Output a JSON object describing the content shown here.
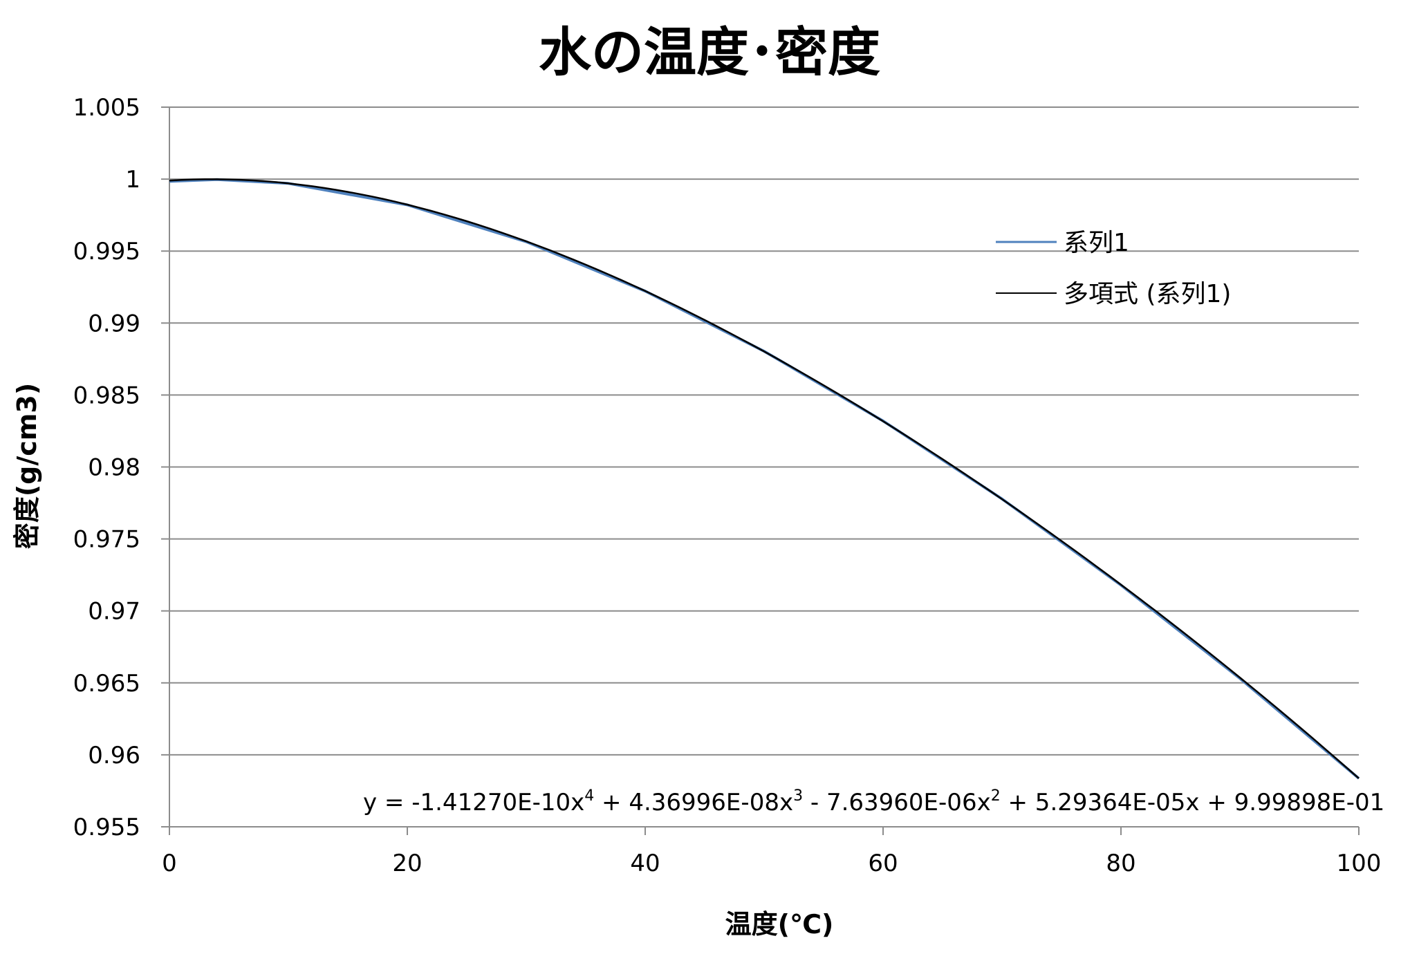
{
  "chart_data": {
    "type": "line",
    "title": "水の温度･密度",
    "xlabel": "温度(℃)",
    "ylabel": "密度(g/cm3)",
    "xlim": [
      0,
      100
    ],
    "ylim": [
      0.955,
      1.005
    ],
    "xticks": [
      "0",
      "20",
      "40",
      "60",
      "80",
      "100"
    ],
    "yticks": [
      "1.005",
      "1",
      "0.995",
      "0.99",
      "0.985",
      "0.98",
      "0.975",
      "0.97",
      "0.965",
      "0.96",
      "0.955"
    ],
    "grid": true,
    "legend_position": "right",
    "series": [
      {
        "name": "系列1",
        "color": "#4f81bd",
        "x": [
          0,
          4,
          10,
          20,
          30,
          40,
          50,
          60,
          70,
          80,
          90,
          100
        ],
        "y": [
          0.99984,
          0.99997,
          0.9997,
          0.99821,
          0.99565,
          0.99222,
          0.98804,
          0.9832,
          0.97778,
          0.97179,
          0.96531,
          0.95836
        ]
      }
    ],
    "trendline": {
      "name": "多項式 (系列1)",
      "color": "#000000",
      "coefficients": [
        -1.4127e-10,
        4.36996e-08,
        -7.6396e-06,
        5.29364e-05,
        0.999898
      ],
      "equation_parts": [
        "y = -1.41270E-10x",
        "4",
        " + 4.36996E-08x",
        "3",
        " - 7.63960E-06x",
        "2",
        " + 5.29364E-05x + 9.99898E-01"
      ]
    }
  }
}
